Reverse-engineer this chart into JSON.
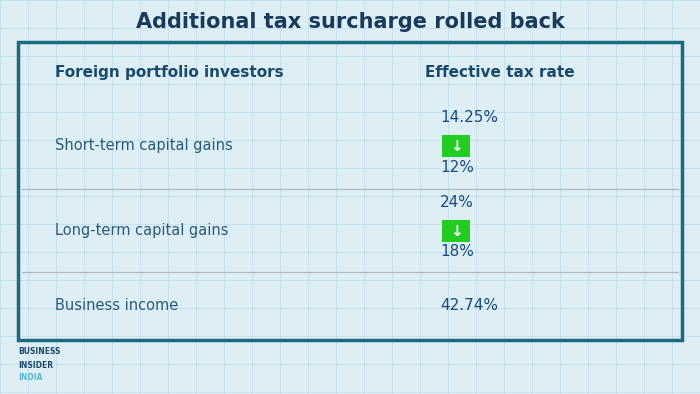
{
  "title": "Additional tax surcharge rolled back",
  "col1_header": "Foreign portfolio investors",
  "col2_header": "Effective tax rate",
  "rows": [
    {
      "label": "Short-term capital gains",
      "rate_before": "14.25%",
      "rate_after": "12%",
      "has_arrow": true
    },
    {
      "label": "Long-term capital gains",
      "rate_before": "24%",
      "rate_after": "18%",
      "has_arrow": true
    },
    {
      "label": "Business income",
      "rate_before": "42.74%",
      "rate_after": null,
      "has_arrow": false
    }
  ],
  "bg_color": "#ddeef5",
  "grid_color": "#b8d8e8",
  "border_color": "#1a6a80",
  "title_color": "#1a3a5c",
  "header_color": "#1a4a6b",
  "label_color": "#2a5a7a",
  "rate_color": "#1a4a7a",
  "arrow_bg_color": "#22cc22",
  "arrow_text_color": "#ffffff",
  "divider_color": "#b0b8c0",
  "logo_line1": "BUSINESS",
  "logo_line2": "INSIDER",
  "logo_line3": "INDIA",
  "logo_color1": "#1a4a6b",
  "logo_color2": "#5ab8d0"
}
